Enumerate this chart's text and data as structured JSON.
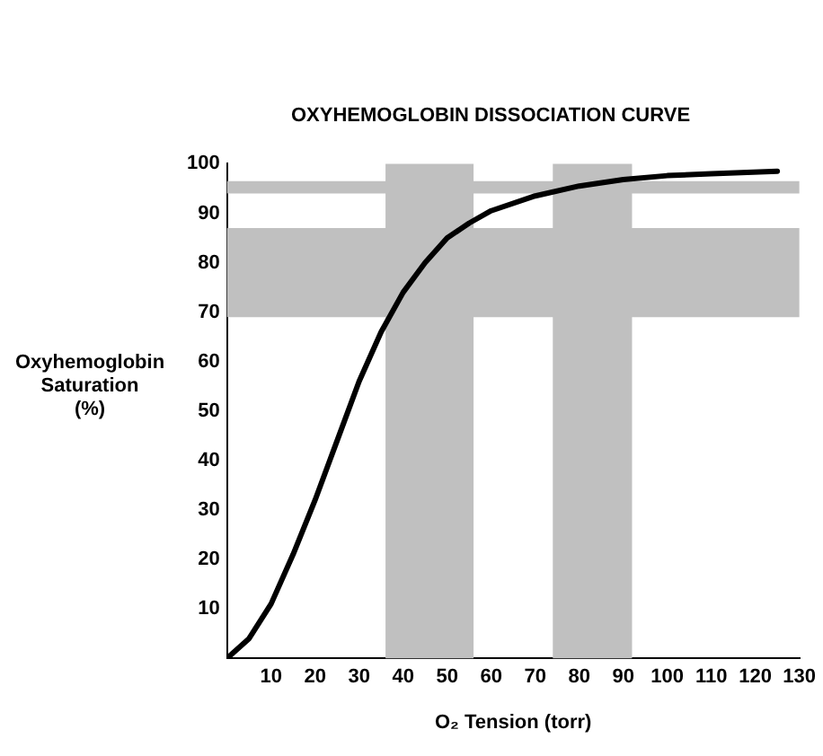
{
  "chart_data": {
    "type": "line",
    "title": "OXYHEMOGLOBIN DISSOCIATION CURVE",
    "xlabel": "O₂ Tension (torr)",
    "ylabel": "Oxyhemoglobin\nSaturation\n(%)",
    "x": [
      0,
      5,
      10,
      15,
      20,
      25,
      30,
      35,
      40,
      45,
      50,
      55,
      60,
      70,
      80,
      90,
      100,
      110,
      125
    ],
    "series": [
      {
        "color": "#000000",
        "values": [
          0,
          4,
          11,
          21,
          32,
          44,
          56,
          66,
          74,
          80,
          85,
          88,
          90.5,
          93.5,
          95.5,
          96.8,
          97.6,
          98,
          98.5
        ]
      }
    ],
    "xlim": [
      0,
      130
    ],
    "xticks": [
      10,
      20,
      30,
      40,
      50,
      60,
      70,
      80,
      90,
      100,
      110,
      120,
      130
    ],
    "ylim": [
      0,
      100
    ],
    "yticks": [
      10,
      20,
      30,
      40,
      50,
      60,
      70,
      80,
      90,
      100
    ],
    "bands": [
      {
        "axis": "x",
        "from": 36,
        "to": 56,
        "color": "#c0c0c0"
      },
      {
        "axis": "x",
        "from": 74,
        "to": 92,
        "color": "#c0c0c0"
      },
      {
        "axis": "y",
        "from": 69,
        "to": 87,
        "color": "#c0c0c0"
      },
      {
        "axis": "y",
        "from": 94,
        "to": 96.5,
        "color": "#c0c0c0"
      }
    ],
    "grid": false,
    "legend": false,
    "marker": "none",
    "line_style": "solid"
  }
}
